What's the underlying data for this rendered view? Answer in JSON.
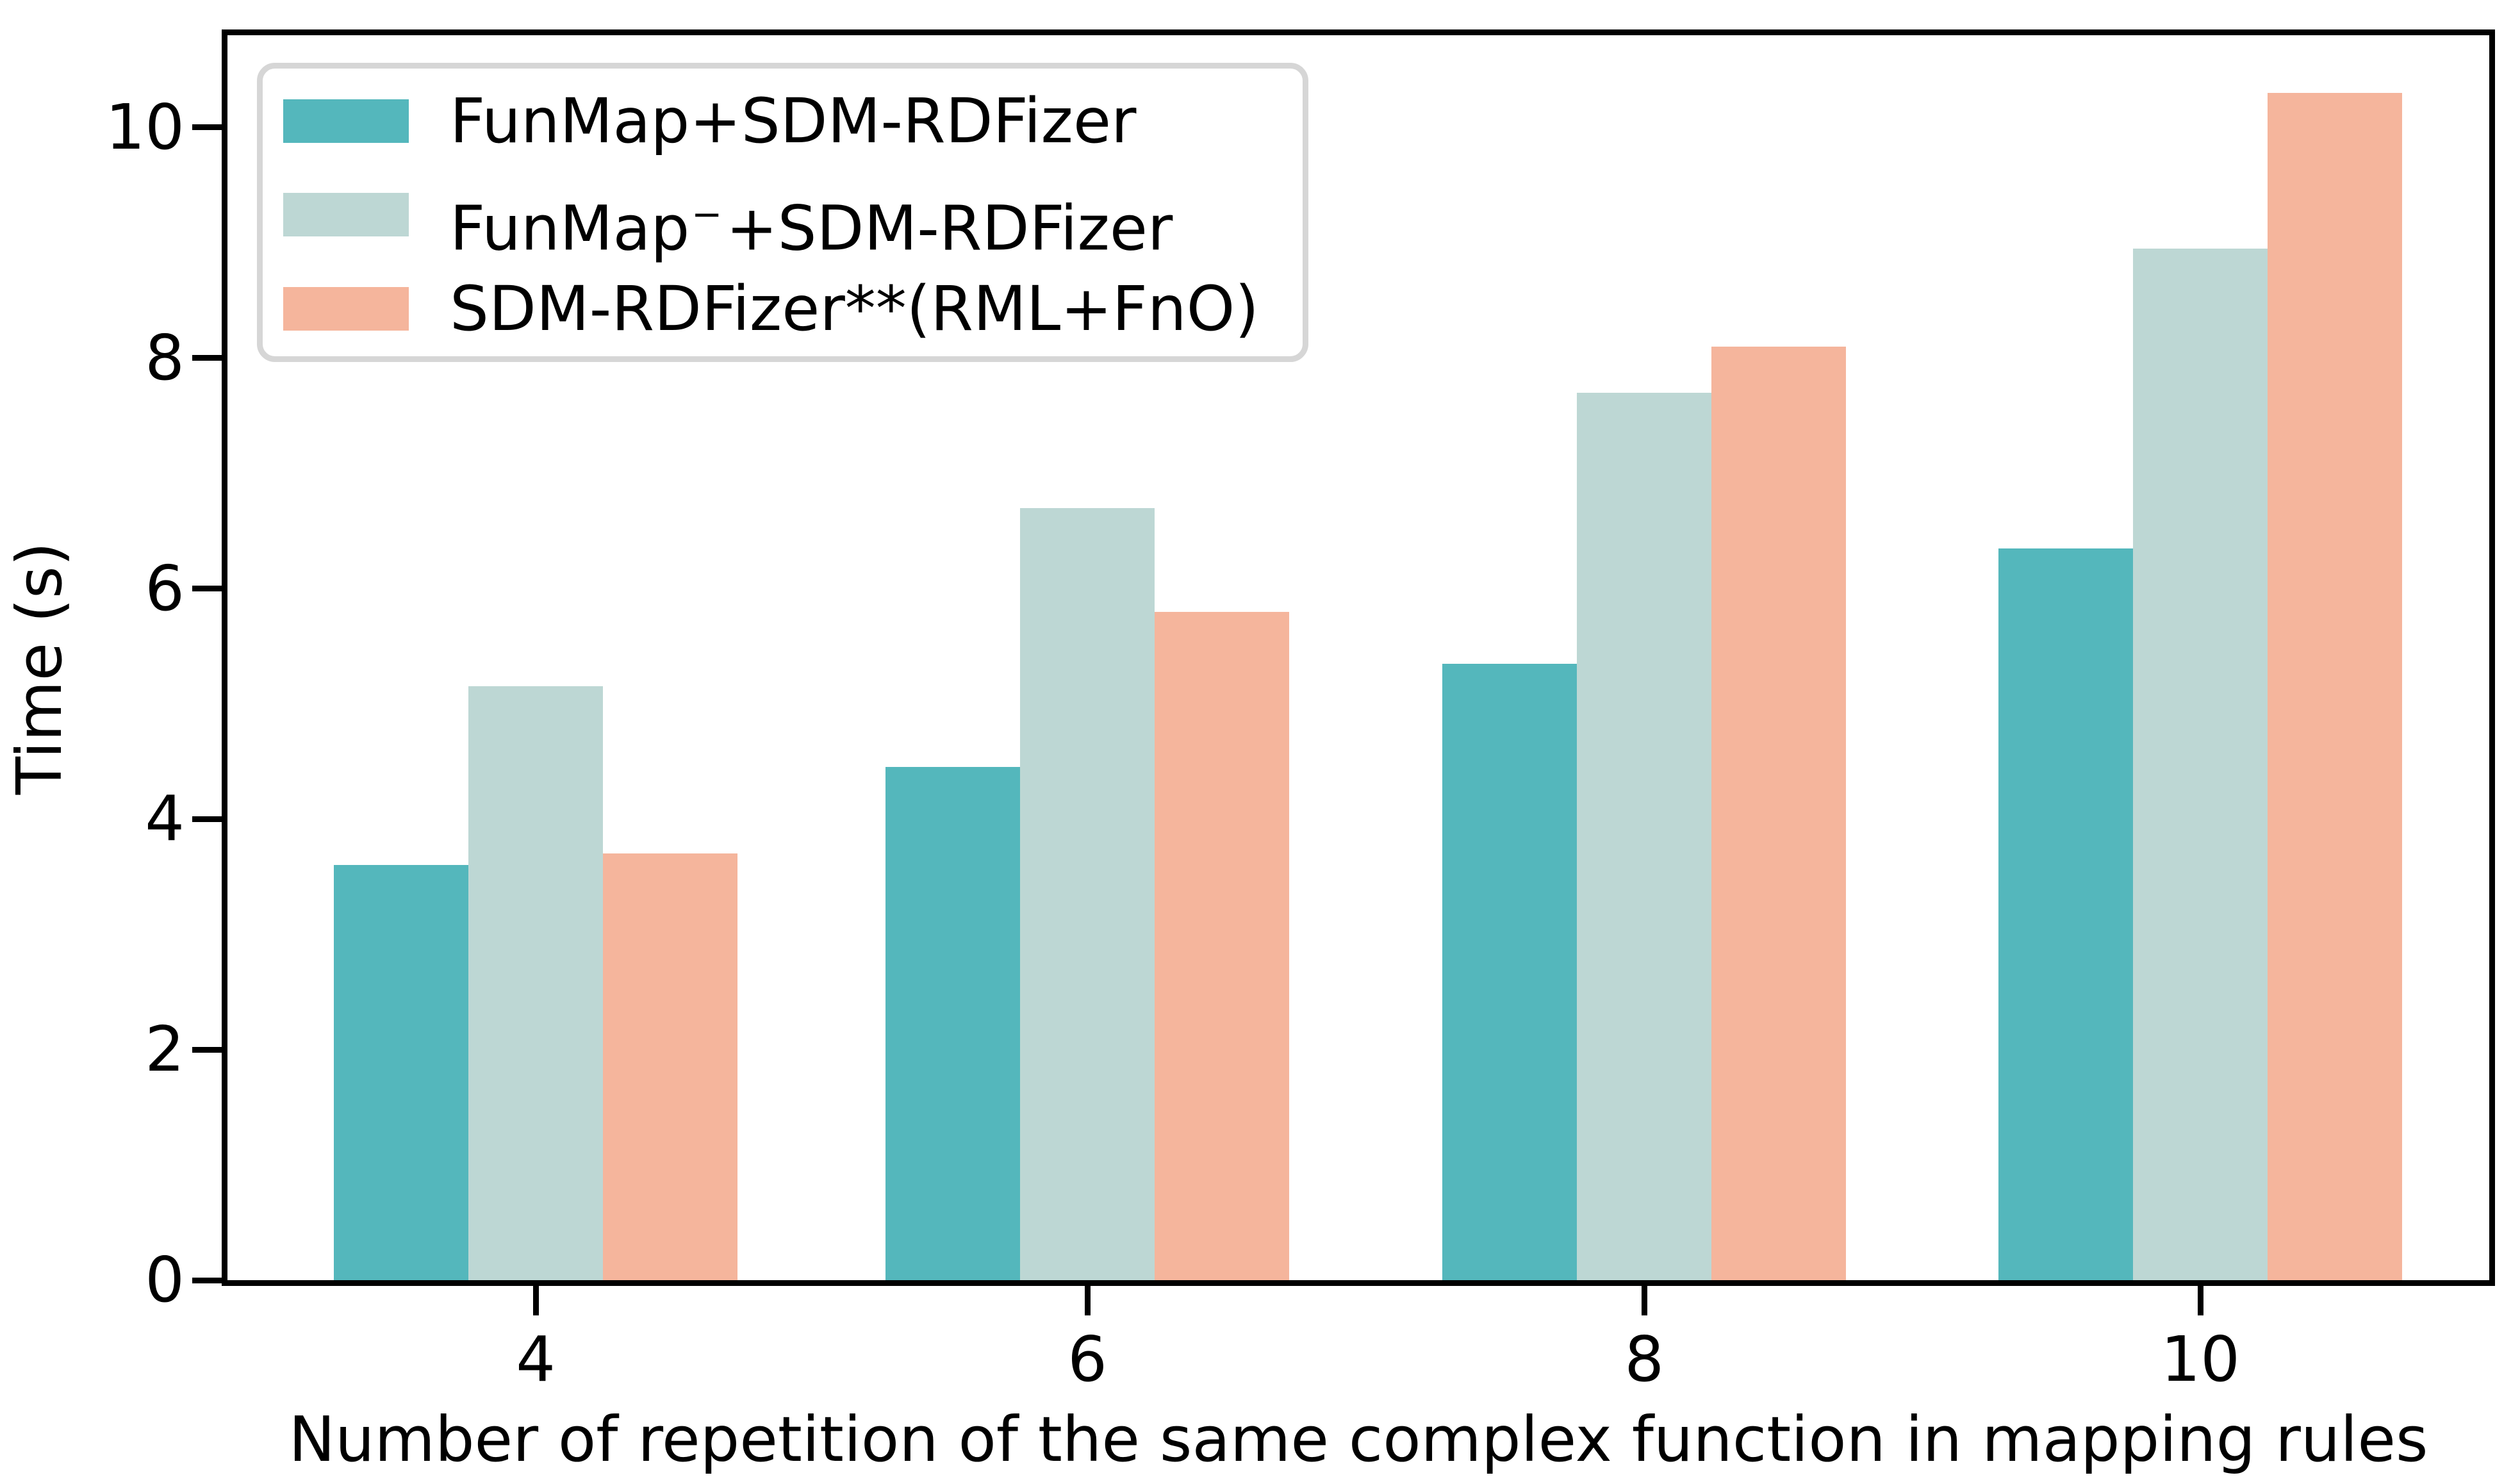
{
  "chart_data": {
    "type": "bar",
    "title": "",
    "xlabel": "Number of repetition of the same complex function in mapping rules",
    "ylabel": "Time (s)",
    "categories": [
      "4",
      "6",
      "8",
      "10"
    ],
    "series": [
      {
        "name": "FunMap+SDM-RDFizer",
        "label_pre": "FunMap",
        "label_sup": "",
        "label_post": "+SDM-RDFizer",
        "color": "#54b7bc",
        "values": [
          3.6,
          4.45,
          5.35,
          6.35
        ]
      },
      {
        "name": "FunMap⁻+SDM-RDFizer",
        "label_pre": "FunMap",
        "label_sup": "−",
        "label_post": "+SDM-RDFizer",
        "color": "#bdd7d4",
        "values": [
          5.15,
          6.7,
          7.7,
          8.95
        ]
      },
      {
        "name": "SDM-RDFizer**(RML+FnO)",
        "label_pre": "SDM-RDFizer**(RML+FnO)",
        "label_sup": "",
        "label_post": "",
        "color": "#f5b59c",
        "values": [
          3.7,
          5.8,
          8.1,
          10.3
        ]
      }
    ],
    "yticks": [
      0,
      2,
      4,
      6,
      8,
      10
    ],
    "ylim": [
      0,
      10.8
    ],
    "grid": false,
    "legend_position": "upper left",
    "colors": {
      "spine": "#000000",
      "text": "#000000",
      "legend_border": "#d6d6d6",
      "background": "#ffffff"
    }
  }
}
